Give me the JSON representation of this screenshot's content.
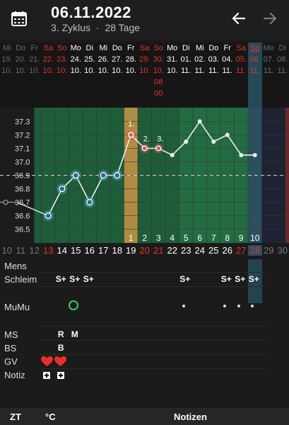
{
  "header": {
    "date": "06.11.2022",
    "cycle": "3. Zyklus",
    "separator": "·",
    "days": "28 Tage",
    "icons": {
      "calendar": "calendar-icon",
      "prev": "arrow-left-icon",
      "next": "arrow-right-icon"
    }
  },
  "dayhead": {
    "weekdays": [
      "Mi",
      "Do",
      "Fr",
      "Sa",
      "So",
      "Mo",
      "Di",
      "Mi",
      "Do",
      "Fr",
      "Sa",
      "So",
      "Mo",
      "Di",
      "Mi",
      "Do",
      "Fr",
      "Sa",
      "So",
      "Mo",
      "Di"
    ],
    "days": [
      "19.",
      "20.",
      "21.",
      "22.",
      "23.",
      "24.",
      "25.",
      "26.",
      "27.",
      "28.",
      "29.",
      "30.",
      "31.",
      "01.",
      "02.",
      "03.",
      "04.",
      "05.",
      "06.",
      "07.",
      "08."
    ],
    "months": [
      "10.",
      "10.",
      "10.",
      "10.",
      "10.",
      "10.",
      "10.",
      "10.",
      "10.",
      "10.",
      "10.",
      "10.",
      "10.",
      "11.",
      "11.",
      "11.",
      "11.",
      "11.",
      "11.",
      "11.",
      "11."
    ],
    "time_hour": "08",
    "time_minute": "00"
  },
  "chart_data": {
    "type": "line",
    "yticks": [
      "37.3",
      "37.2",
      "37.1",
      "37.0",
      "36.9",
      "36.8",
      "36.7",
      "36.6",
      "36.5"
    ],
    "ylim": [
      36.44,
      37.36
    ],
    "coverline": 36.9,
    "x": [
      13,
      14,
      15,
      16,
      17,
      18,
      19,
      20,
      21,
      22,
      23,
      24,
      25,
      26,
      27,
      28
    ],
    "values": [
      36.6,
      36.8,
      36.9,
      36.7,
      36.9,
      36.9,
      37.2,
      37.1,
      37.1,
      37.05,
      37.15,
      37.3,
      37.15,
      37.2,
      37.05,
      37.05
    ],
    "pre_values": [
      36.7,
      36.7
    ],
    "high_labels": [
      "1.",
      "2.",
      "3."
    ],
    "count_labels": [
      "1",
      "2",
      "3",
      "4",
      "5",
      "6",
      "7",
      "8",
      "9",
      "10"
    ],
    "colors": {
      "low": "#3fa9c9",
      "high": "#e05555",
      "fertile": "#1f6b3b",
      "ovulation": "#c9a04b"
    }
  },
  "daynums": [
    "10",
    "11",
    "12",
    "13",
    "14",
    "15",
    "16",
    "17",
    "18",
    "19",
    "20",
    "21",
    "22",
    "23",
    "24",
    "25",
    "26",
    "27",
    "28",
    "29",
    "30"
  ],
  "rows": {
    "mens": "Mens",
    "schleim": "Schleim",
    "mumu": "MuMu",
    "ms": "MS",
    "bs": "BS",
    "gv": "GV",
    "notiz": "Notiz",
    "s_plus": "S+",
    "ms_r": "R",
    "ms_m": "M",
    "bs_b": "B"
  },
  "bottom": {
    "zt": "ZT",
    "unit": "°C",
    "notes": "Notizen"
  }
}
